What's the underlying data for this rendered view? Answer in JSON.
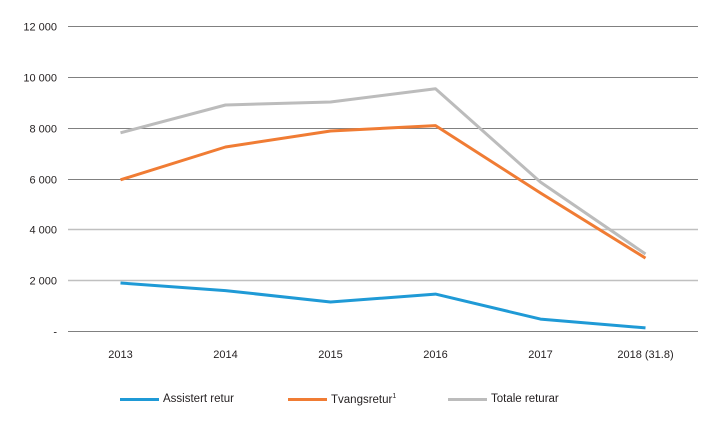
{
  "chart_data": {
    "type": "line",
    "title": "",
    "xlabel": "",
    "ylabel": "",
    "categories": [
      "2013",
      "2014",
      "2015",
      "2016",
      "2017",
      "2018 (31.8)"
    ],
    "ylim": [
      0,
      12000
    ],
    "yticks": [
      0,
      2000,
      4000,
      6000,
      8000,
      10000,
      12000
    ],
    "ytick_labels": [
      "-",
      "2 000",
      "4 000",
      "6 000",
      "8 000",
      "10 000",
      "12 000"
    ],
    "grid": true,
    "legend_position": "bottom",
    "series": [
      {
        "name": "Assistert retur",
        "color": "#1f9ad6",
        "values": [
          1890,
          1590,
          1140,
          1450,
          470,
          120
        ]
      },
      {
        "name": "Tvangsretur",
        "superscript": "1",
        "color": "#f07c34",
        "values": [
          5950,
          7240,
          7870,
          8080,
          5430,
          2870
        ]
      },
      {
        "name": "Totale returar",
        "color": "#bcbcbc",
        "values": [
          7800,
          8890,
          9010,
          9530,
          5860,
          3030
        ]
      }
    ]
  }
}
